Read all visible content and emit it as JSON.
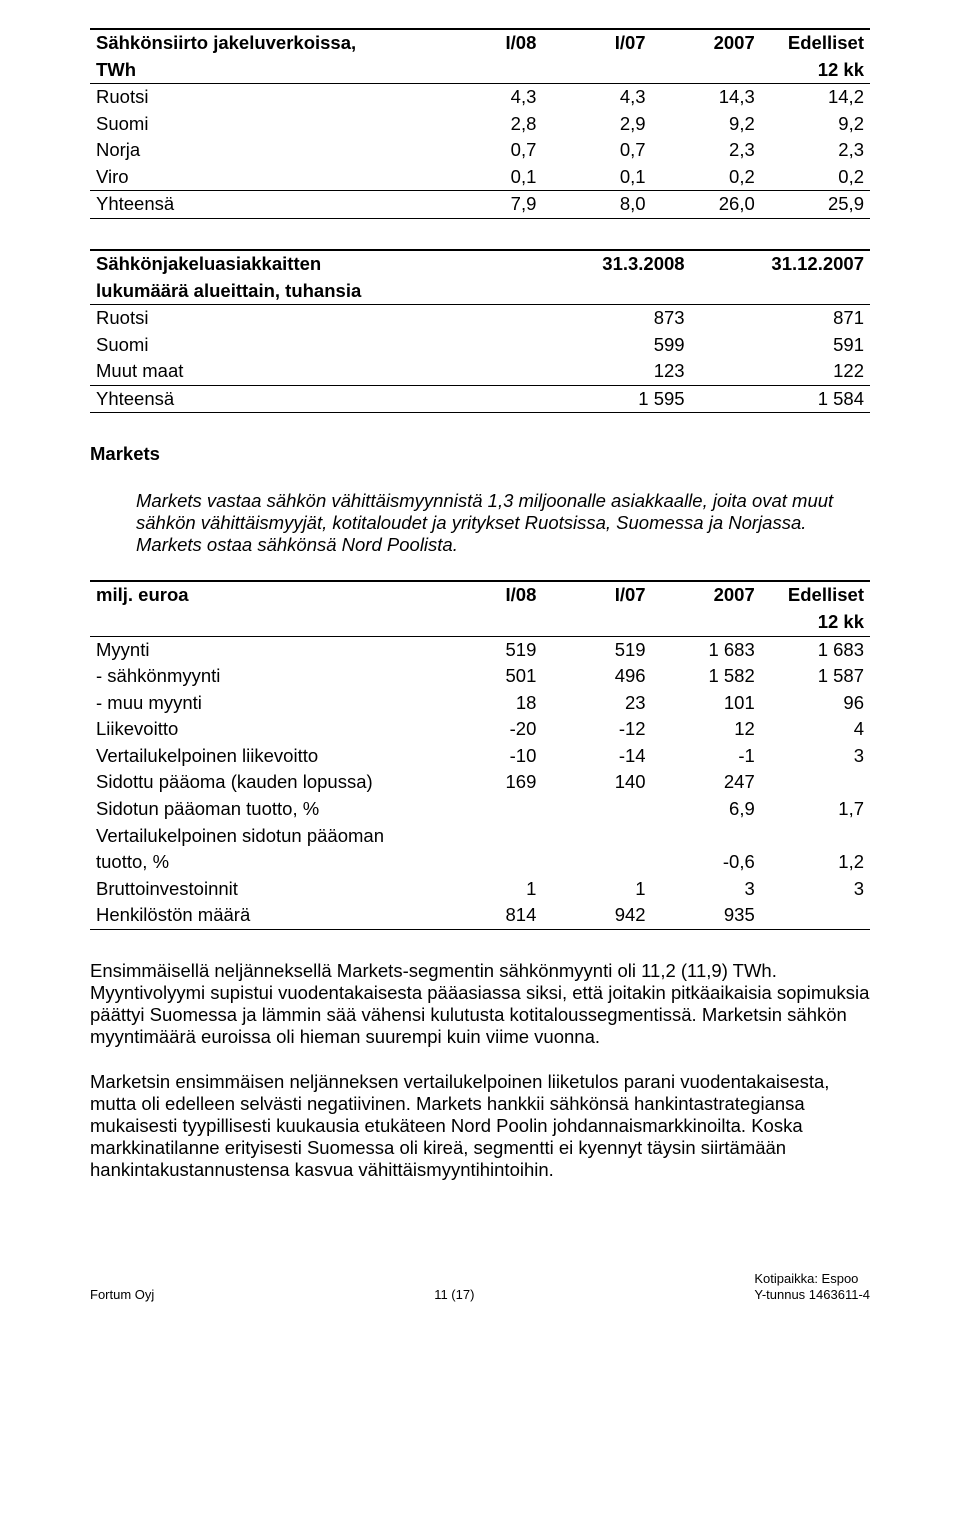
{
  "colors": {
    "text": "#000000",
    "background": "#ffffff",
    "rule": "#000000"
  },
  "fonts": {
    "body_pt": 14,
    "footer_pt": 10,
    "family": "Arial"
  },
  "table1": {
    "type": "table",
    "title_a": "Sähkönsiirto jakeluverkoissa,",
    "title_b": "TWh",
    "headers": [
      "I/08",
      "I/07",
      "2007",
      "Edelliset"
    ],
    "subheader_last": "12 kk",
    "row_labels": [
      "Ruotsi",
      "Suomi",
      "Norja",
      "Viro",
      "Yhteensä"
    ],
    "rows": [
      [
        "4,3",
        "4,3",
        "14,3",
        "14,2"
      ],
      [
        "2,8",
        "2,9",
        "9,2",
        "9,2"
      ],
      [
        "0,7",
        "0,7",
        "2,3",
        "2,3"
      ],
      [
        "0,1",
        "0,1",
        "0,2",
        "0,2"
      ],
      [
        "7,9",
        "8,0",
        "26,0",
        "25,9"
      ]
    ],
    "col_align": [
      "left",
      "right",
      "right",
      "right",
      "right"
    ]
  },
  "table2": {
    "type": "table",
    "title_a": "Sähkönjakeluasiakkaitten",
    "title_b": "lukumäärä alueittain, tuhansia",
    "headers": [
      "31.3.2008",
      "31.12.2007"
    ],
    "row_labels": [
      "Ruotsi",
      "Suomi",
      "Muut maat",
      "Yhteensä"
    ],
    "rows": [
      [
        "873",
        "871"
      ],
      [
        "599",
        "591"
      ],
      [
        "123",
        "122"
      ],
      [
        "1 595",
        "1 584"
      ]
    ]
  },
  "markets_heading": "Markets",
  "markets_desc": "Markets vastaa sähkön vähittäismyynnistä 1,3 miljoonalle asiakkaalle, joita ovat muut sähkön vähittäismyyjät, kotitaloudet ja yritykset Ruotsissa, Suomessa ja Norjassa. Markets ostaa sähkönsä Nord Poolista.",
  "table3": {
    "type": "table",
    "title": "milj. euroa",
    "headers": [
      "I/08",
      "I/07",
      "2007",
      "Edelliset"
    ],
    "subheader_last": "12 kk",
    "row_labels": [
      "Myynti",
      "- sähkönmyynti",
      "- muu myynti",
      "Liikevoitto",
      "Vertailukelpoinen liikevoitto",
      "Sidottu pääoma (kauden lopussa)",
      "Sidotun pääoman tuotto, %",
      "Vertailukelpoinen sidotun pääoman",
      "tuotto, %",
      "Bruttoinvestoinnit",
      "Henkilöstön määrä"
    ],
    "rows": [
      [
        "519",
        "519",
        "1 683",
        "1 683"
      ],
      [
        "501",
        "496",
        "1 582",
        "1 587"
      ],
      [
        "18",
        "23",
        "101",
        "96"
      ],
      [
        "-20",
        "-12",
        "12",
        "4"
      ],
      [
        "-10",
        "-14",
        "-1",
        "3"
      ],
      [
        "169",
        "140",
        "247",
        ""
      ],
      [
        "",
        "",
        "6,9",
        "1,7"
      ],
      [
        "",
        "",
        "",
        ""
      ],
      [
        "",
        "",
        "-0,6",
        "1,2"
      ],
      [
        "1",
        "1",
        "3",
        "3"
      ],
      [
        "814",
        "942",
        "935",
        ""
      ]
    ]
  },
  "para1": "Ensimmäisellä neljänneksellä Markets-segmentin sähkönmyynti oli 11,2 (11,9) TWh. Myyntivolyymi supistui vuodentakaisesta pääasiassa siksi, että joitakin pitkäaikaisia sopimuksia päättyi Suomessa ja lämmin sää vähensi kulutusta kotitaloussegmentissä. Marketsin sähkön myyntimäärä euroissa oli hieman suurempi kuin viime vuonna.",
  "para2": "Marketsin ensimmäisen neljänneksen vertailukelpoinen liiketulos parani vuodentakaisesta, mutta oli edelleen selvästi negatiivinen. Markets hankkii sähkönsä hankintastrategiansa mukaisesti tyypillisesti kuukausia etukäteen Nord Poolin johdannaismarkkinoilta. Koska markkinatilanne erityisesti Suomessa oli kireä, segmentti ei kyennyt täysin siirtämään hankintakustannustensa kasvua vähittäismyyntihintoihin.",
  "footer": {
    "left": "Fortum Oyj",
    "center": "11 (17)",
    "right_a": "Kotipaikka: Espoo",
    "right_b": "Y-tunnus 1463611-4"
  }
}
